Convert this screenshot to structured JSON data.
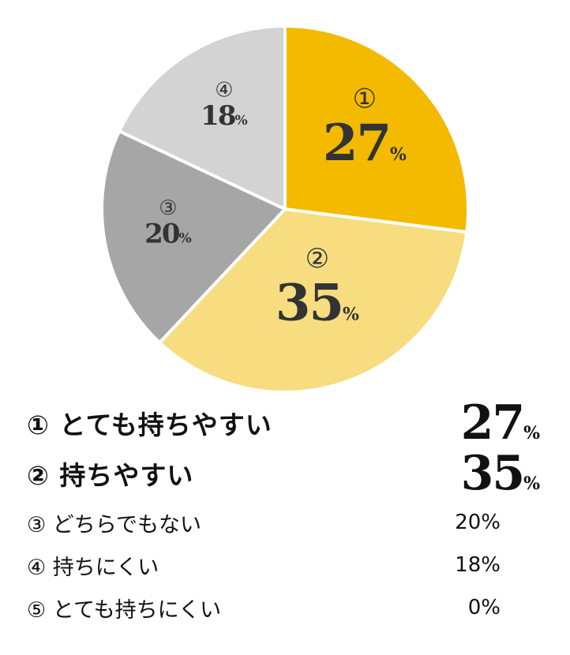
{
  "chart_data": {
    "type": "pie",
    "slices": [
      {
        "marker": "①",
        "value": 27,
        "value_text": "27",
        "unit": "%",
        "color": "#f3ba00"
      },
      {
        "marker": "②",
        "value": 35,
        "value_text": "35",
        "unit": "%",
        "color": "#f7dc80"
      },
      {
        "marker": "③",
        "value": 20,
        "value_text": "20",
        "unit": "%",
        "color": "#a6a6a6"
      },
      {
        "marker": "④",
        "value": 18,
        "value_text": "18",
        "unit": "%",
        "color": "#d3d3d3"
      }
    ]
  },
  "legend": [
    {
      "label": "① とても持ちやすい",
      "value": "27",
      "unit": "%"
    },
    {
      "label": "② 持ちやすい",
      "value": "35",
      "unit": "%"
    },
    {
      "label": "③ どちらでもない",
      "value": "20%"
    },
    {
      "label": "④ 持ちにくい",
      "value": "18%"
    },
    {
      "label": "⑤ とても持ちにくい",
      "value": "0%"
    }
  ]
}
